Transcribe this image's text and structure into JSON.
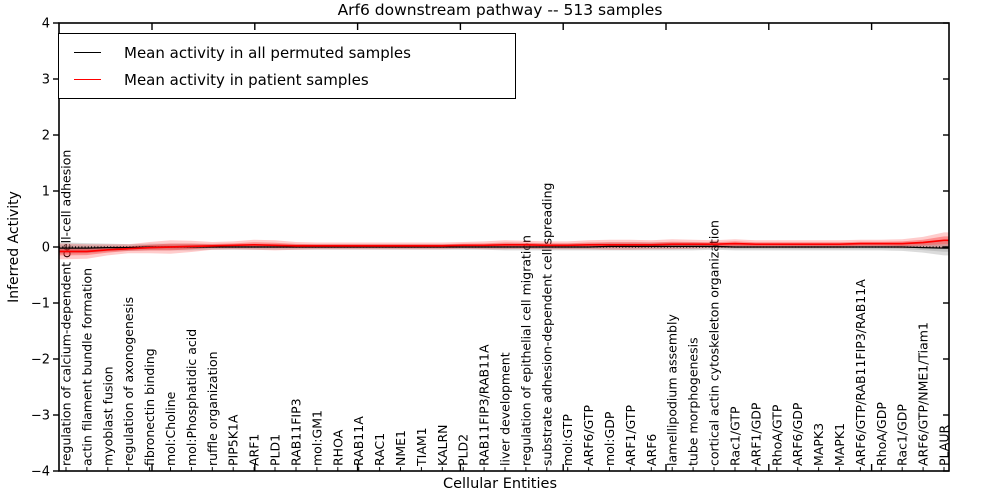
{
  "title": "Arf6 downstream pathway -- 513 samples",
  "xlabel": "Cellular Entities",
  "ylabel": "Inferred Activity",
  "legend": [
    {
      "label": "Mean activity in all permuted samples",
      "color": "#000000"
    },
    {
      "label": "Mean activity in patient samples",
      "color": "#ff0000"
    }
  ],
  "chart_data": {
    "type": "line",
    "title": "Arf6 downstream pathway -- 513 samples",
    "xlabel": "Cellular Entities",
    "ylabel": "Inferred Activity",
    "ylim": [
      -4,
      4
    ],
    "yticks": [
      "4",
      "3",
      "2",
      "1",
      "0",
      "−1",
      "−2",
      "−3",
      "−4"
    ],
    "grid": false,
    "legend_position": "upper left",
    "zero_line": true,
    "categories": [
      "regulation of calcium-dependent cell-cell adhesion",
      "actin filament bundle formation",
      "myoblast fusion",
      "regulation of axonogenesis",
      "fibronectin binding",
      "mol:Choline",
      "mol:Phosphatidic acid",
      "ruffle organization",
      "PIP5K1A",
      "ARF1",
      "PLD1",
      "RAB11FIP3",
      "mol:GM1",
      "RHOA",
      "RAB11A",
      "RAC1",
      "NME1",
      "TIAM1",
      "KALRN",
      "PLD2",
      "RAB11FIP3/RAB11A",
      "liver development",
      "regulation of epithelial cell migration",
      "substrate adhesion-dependent cell spreading",
      "mol:GTP",
      "ARF6/GTP",
      "mol:GDP",
      "ARF1/GTP",
      "ARF6",
      "lamellipodium assembly",
      "tube morphogenesis",
      "cortical actin cytoskeleton organization",
      "Rac1/GTP",
      "ARF1/GDP",
      "RhoA/GTP",
      "ARF6/GDP",
      "MAPK3",
      "MAPK1",
      "ARF6/GTP/RAB11FIP3/RAB11A",
      "RhoA/GDP",
      "Rac1/GDP",
      "ARF6/GTP/NME1/Tiam1",
      "PLAUR"
    ],
    "series": [
      {
        "name": "Mean activity in all permuted samples",
        "color": "#000000",
        "band_color": "#888888",
        "values": [
          -0.02,
          -0.02,
          -0.01,
          -0.01,
          0,
          0,
          0,
          0,
          0,
          0,
          0,
          0,
          0,
          0,
          0,
          0,
          0,
          0,
          0,
          0,
          0,
          0,
          0,
          0,
          0,
          0,
          0.01,
          0.01,
          0.01,
          0.01,
          0.01,
          0.01,
          0,
          0,
          0,
          0,
          0,
          0,
          0,
          0,
          0,
          -0.01,
          -0.02
        ],
        "band": [
          0.1,
          0.09,
          0.07,
          0.06,
          0.06,
          0.06,
          0.06,
          0.05,
          0.05,
          0.05,
          0.05,
          0.05,
          0.05,
          0.05,
          0.05,
          0.05,
          0.05,
          0.05,
          0.05,
          0.05,
          0.05,
          0.06,
          0.06,
          0.06,
          0.06,
          0.06,
          0.07,
          0.07,
          0.07,
          0.07,
          0.07,
          0.06,
          0.06,
          0.06,
          0.06,
          0.06,
          0.06,
          0.06,
          0.06,
          0.06,
          0.07,
          0.09,
          0.13
        ]
      },
      {
        "name": "Mean activity in patient samples",
        "color": "#ff0000",
        "band_color": "#ff0000",
        "values": [
          -0.08,
          -0.08,
          -0.05,
          -0.03,
          -0.01,
          0,
          0.01,
          0.02,
          0.03,
          0.04,
          0.03,
          0.02,
          0.02,
          0.02,
          0.02,
          0.02,
          0.02,
          0.02,
          0.02,
          0.03,
          0.03,
          0.04,
          0.04,
          0.03,
          0.03,
          0.04,
          0.04,
          0.04,
          0.04,
          0.05,
          0.05,
          0.05,
          0.06,
          0.05,
          0.05,
          0.05,
          0.05,
          0.05,
          0.06,
          0.06,
          0.06,
          0.08,
          0.12
        ],
        "band": [
          0.14,
          0.13,
          0.1,
          0.08,
          0.1,
          0.12,
          0.1,
          0.07,
          0.07,
          0.09,
          0.09,
          0.07,
          0.06,
          0.06,
          0.06,
          0.06,
          0.06,
          0.06,
          0.06,
          0.06,
          0.07,
          0.08,
          0.07,
          0.07,
          0.07,
          0.08,
          0.09,
          0.09,
          0.08,
          0.09,
          0.08,
          0.07,
          0.08,
          0.07,
          0.07,
          0.07,
          0.07,
          0.07,
          0.07,
          0.07,
          0.08,
          0.1,
          0.14
        ]
      }
    ]
  }
}
